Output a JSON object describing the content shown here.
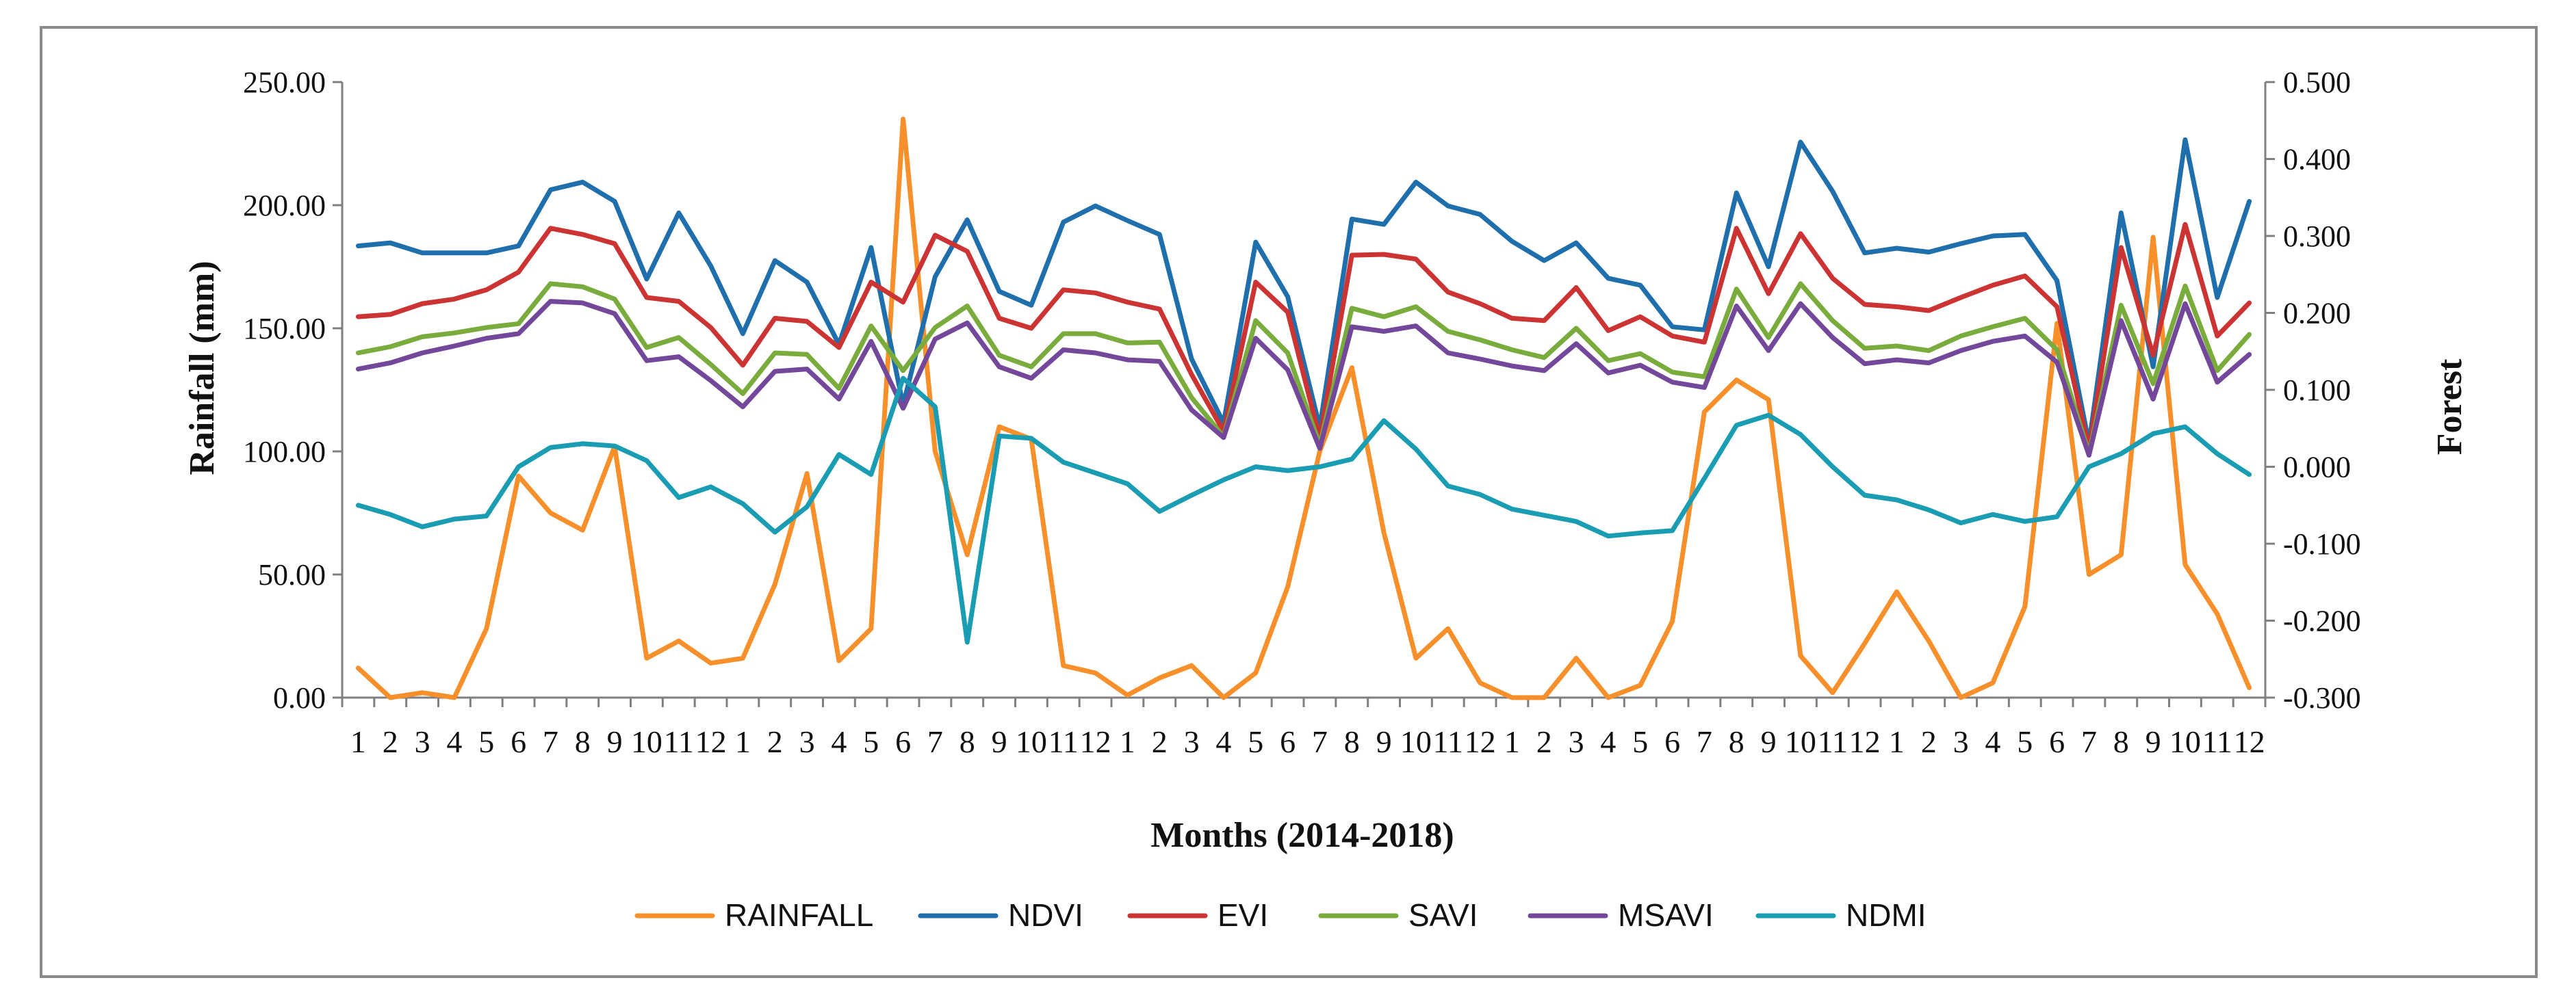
{
  "chart_data": {
    "type": "line",
    "title": "",
    "xlabel": "Months (2014-2018)",
    "ylabel_left": "Rainfall (mm)",
    "ylabel_right": "Forest",
    "ylim_left": [
      0,
      250
    ],
    "ylim_right": [
      -0.3,
      0.5
    ],
    "yticks_left": [
      "0.00",
      "50.00",
      "100.00",
      "150.00",
      "200.00",
      "250.00"
    ],
    "yticks_right": [
      "-0.300",
      "-0.200",
      "-0.100",
      "0.000",
      "0.100",
      "0.200",
      "0.300",
      "0.400",
      "0.500"
    ],
    "x_ticks": [
      "1",
      "2",
      "3",
      "4",
      "5",
      "6",
      "7",
      "8",
      "9",
      "10",
      "11",
      "12",
      "1",
      "2",
      "3",
      "4",
      "5",
      "6",
      "7",
      "8",
      "9",
      "10",
      "11",
      "12",
      "1",
      "2",
      "3",
      "4",
      "5",
      "6",
      "7",
      "8",
      "9",
      "10",
      "11",
      "12",
      "1",
      "2",
      "3",
      "4",
      "5",
      "6",
      "7",
      "8",
      "9",
      "10",
      "11",
      "12",
      "1",
      "2",
      "3",
      "4",
      "5",
      "6",
      "7",
      "8",
      "9",
      "10",
      "11",
      "12"
    ],
    "legend_position": "bottom",
    "series": [
      {
        "name": "RAINFALL",
        "axis": "left",
        "color": "#f7902b",
        "values": [
          12,
          0,
          2,
          0,
          28,
          90,
          75,
          68,
          102,
          16,
          23,
          14,
          16,
          46,
          91,
          15,
          28,
          235,
          100,
          58,
          110,
          105,
          13,
          10,
          1,
          8,
          13,
          0,
          10,
          45,
          100,
          134,
          67,
          16,
          28,
          6,
          0,
          0,
          16,
          0,
          5,
          31,
          116,
          129,
          121,
          17,
          2,
          22,
          43,
          23,
          0,
          6,
          37,
          152,
          50,
          58,
          187,
          54,
          34,
          4
        ]
      },
      {
        "name": "NDVI",
        "axis": "right",
        "color": "#1f6fad",
        "values": [
          0.287,
          0.291,
          0.278,
          0.278,
          0.278,
          0.287,
          0.36,
          0.37,
          0.345,
          0.244,
          0.33,
          0.261,
          0.173,
          0.268,
          0.24,
          0.159,
          0.285,
          0.08,
          0.247,
          0.321,
          0.228,
          0.21,
          0.318,
          0.339,
          0.32,
          0.302,
          0.14,
          0.057,
          0.292,
          0.221,
          0.051,
          0.322,
          0.315,
          0.37,
          0.339,
          0.328,
          0.293,
          0.268,
          0.291,
          0.245,
          0.236,
          0.182,
          0.178,
          0.356,
          0.26,
          0.422,
          0.358,
          0.278,
          0.284,
          0.279,
          0.29,
          0.3,
          0.302,
          0.242,
          0.03,
          0.33,
          0.13,
          0.425,
          0.22,
          0.345
        ]
      },
      {
        "name": "EVI",
        "axis": "right",
        "color": "#cc3333",
        "values": [
          0.195,
          0.198,
          0.212,
          0.218,
          0.23,
          0.253,
          0.31,
          0.302,
          0.29,
          0.22,
          0.215,
          0.181,
          0.132,
          0.193,
          0.189,
          0.155,
          0.24,
          0.214,
          0.301,
          0.28,
          0.193,
          0.18,
          0.23,
          0.226,
          0.214,
          0.205,
          0.12,
          0.046,
          0.24,
          0.201,
          0.037,
          0.275,
          0.276,
          0.27,
          0.227,
          0.212,
          0.193,
          0.19,
          0.233,
          0.177,
          0.195,
          0.17,
          0.162,
          0.31,
          0.225,
          0.303,
          0.245,
          0.211,
          0.208,
          0.203,
          0.22,
          0.236,
          0.248,
          0.208,
          0.023,
          0.285,
          0.145,
          0.315,
          0.17,
          0.213
        ]
      },
      {
        "name": "SAVI",
        "axis": "right",
        "color": "#7aac3d",
        "values": [
          0.148,
          0.156,
          0.169,
          0.174,
          0.181,
          0.186,
          0.238,
          0.234,
          0.218,
          0.155,
          0.168,
          0.133,
          0.095,
          0.148,
          0.146,
          0.102,
          0.183,
          0.125,
          0.181,
          0.209,
          0.145,
          0.13,
          0.173,
          0.173,
          0.161,
          0.162,
          0.09,
          0.039,
          0.19,
          0.148,
          0.028,
          0.206,
          0.195,
          0.208,
          0.176,
          0.165,
          0.152,
          0.142,
          0.18,
          0.138,
          0.147,
          0.123,
          0.117,
          0.231,
          0.168,
          0.238,
          0.19,
          0.154,
          0.157,
          0.151,
          0.17,
          0.182,
          0.193,
          0.152,
          0.017,
          0.21,
          0.108,
          0.235,
          0.125,
          0.172
        ]
      },
      {
        "name": "MSAVI",
        "axis": "right",
        "color": "#73489a",
        "values": [
          0.127,
          0.135,
          0.148,
          0.157,
          0.167,
          0.173,
          0.215,
          0.213,
          0.199,
          0.138,
          0.143,
          0.112,
          0.078,
          0.124,
          0.127,
          0.088,
          0.163,
          0.076,
          0.166,
          0.187,
          0.13,
          0.115,
          0.152,
          0.148,
          0.139,
          0.137,
          0.074,
          0.038,
          0.167,
          0.126,
          0.024,
          0.182,
          0.176,
          0.183,
          0.148,
          0.14,
          0.131,
          0.125,
          0.16,
          0.122,
          0.132,
          0.11,
          0.103,
          0.209,
          0.151,
          0.212,
          0.168,
          0.134,
          0.139,
          0.135,
          0.151,
          0.163,
          0.17,
          0.136,
          0.015,
          0.19,
          0.088,
          0.212,
          0.11,
          0.146
        ]
      },
      {
        "name": "NDMI",
        "axis": "right",
        "color": "#1a9db3",
        "values": [
          -0.05,
          -0.062,
          -0.078,
          -0.068,
          -0.064,
          0.0,
          0.025,
          0.03,
          0.027,
          0.008,
          -0.04,
          -0.026,
          -0.048,
          -0.085,
          -0.052,
          0.016,
          -0.01,
          0.115,
          0.078,
          -0.228,
          0.04,
          0.037,
          0.006,
          -0.008,
          -0.022,
          -0.058,
          -0.037,
          -0.017,
          0.0,
          -0.005,
          0.0,
          0.01,
          0.06,
          0.023,
          -0.025,
          -0.036,
          -0.055,
          -0.063,
          -0.071,
          -0.09,
          -0.086,
          -0.083,
          -0.015,
          0.054,
          0.067,
          0.042,
          0.0,
          -0.037,
          -0.043,
          -0.056,
          -0.073,
          -0.062,
          -0.071,
          -0.065,
          0.0,
          0.017,
          0.043,
          0.052,
          0.017,
          -0.01
        ]
      }
    ]
  }
}
